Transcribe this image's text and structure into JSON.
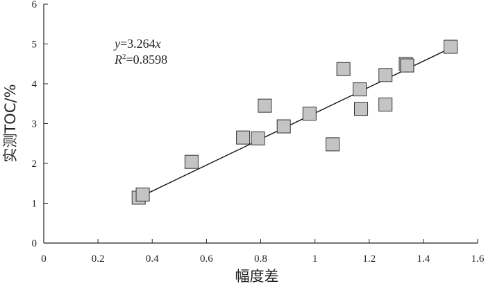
{
  "chart_data": {
    "type": "scatter",
    "xlabel": "幅度差",
    "ylabel": "实测TOC/%",
    "xlim": [
      0,
      1.6
    ],
    "ylim": [
      0,
      6
    ],
    "xticks": [
      "0",
      "0.2",
      "0.4",
      "0.6",
      "0.8",
      "1",
      "1.2",
      "1.4",
      "1.6"
    ],
    "yticks": [
      "0",
      "1",
      "2",
      "3",
      "4",
      "5",
      "6"
    ],
    "grid": false,
    "marker": "square",
    "marker_color": "#c4c4c4",
    "points": [
      {
        "x": 0.35,
        "y": 1.14
      },
      {
        "x": 0.365,
        "y": 1.22
      },
      {
        "x": 0.545,
        "y": 2.04
      },
      {
        "x": 0.735,
        "y": 2.65
      },
      {
        "x": 0.79,
        "y": 2.63
      },
      {
        "x": 0.815,
        "y": 3.45
      },
      {
        "x": 0.885,
        "y": 2.93
      },
      {
        "x": 0.98,
        "y": 3.25
      },
      {
        "x": 1.065,
        "y": 2.48
      },
      {
        "x": 1.105,
        "y": 4.37
      },
      {
        "x": 1.165,
        "y": 3.86
      },
      {
        "x": 1.17,
        "y": 3.37
      },
      {
        "x": 1.26,
        "y": 4.22
      },
      {
        "x": 1.26,
        "y": 3.48
      },
      {
        "x": 1.335,
        "y": 4.5
      },
      {
        "x": 1.34,
        "y": 4.46
      },
      {
        "x": 1.5,
        "y": 4.93
      }
    ],
    "fit_line": {
      "slope": 3.264,
      "x_range": [
        0.37,
        1.5
      ]
    },
    "annotation": {
      "eq_var_y": "y",
      "eq_rest": "=3.264",
      "eq_var_x": "x",
      "r2_var": "R",
      "r2_sup": "2",
      "r2_rest": "=0.8598"
    }
  }
}
